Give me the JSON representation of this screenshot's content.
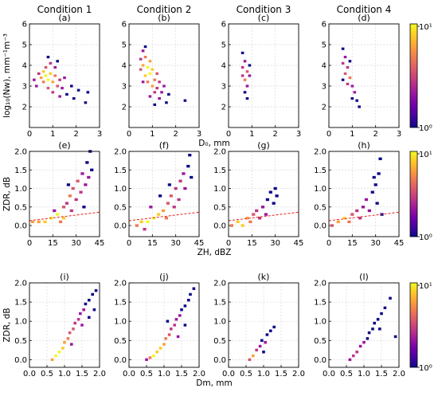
{
  "colors": {
    "colormap": [
      "#0d0887",
      "#46039f",
      "#7201a8",
      "#9c179e",
      "#bd3786",
      "#d8576b",
      "#ed7953",
      "#fb9f3a",
      "#fdca26",
      "#f0f921"
    ],
    "ref_line": "#e8201c",
    "grid": "#d9d9d9"
  },
  "columns": [
    "Condition 1",
    "Condition 2",
    "Condition 3",
    "Condition 4"
  ],
  "panel_labels": [
    "(a)",
    "(b)",
    "(c)",
    "(d)",
    "(e)",
    "(f)",
    "(g)",
    "(h)",
    "(i)",
    "(j)",
    "(k)",
    "(l)"
  ],
  "rows": [
    {
      "ylabel": "log₁₀(Nw), mm⁻¹m⁻³",
      "xlabel": "D₀, mm",
      "xlim": [
        0,
        3
      ],
      "ylim": [
        1,
        6
      ],
      "xticks": [
        "0",
        "1",
        "2",
        "3"
      ],
      "yticks": [
        "2",
        "3",
        "4",
        "5",
        "6"
      ],
      "colorbar": {
        "scale": "log",
        "ticks": [
          "10⁰",
          "10¹"
        ]
      }
    },
    {
      "ylabel": "ZDR, dB",
      "xlabel": "ZH, dBZ",
      "xlim": [
        0,
        45
      ],
      "ylim": [
        -0.3,
        2.0
      ],
      "xticks": [
        "0",
        "15",
        "30",
        "45"
      ],
      "yticks": [
        "0.0",
        "0.5",
        "1.0",
        "1.5",
        "2.0"
      ],
      "colorbar": {
        "scale": "log",
        "ticks": [
          "10⁰",
          "10¹"
        ]
      }
    },
    {
      "ylabel": "ZDR, dB",
      "xlabel": "Dm, mm",
      "xlim": [
        0,
        2
      ],
      "ylim": [
        -0.2,
        2.0
      ],
      "xticks": [
        "0.0",
        "0.5",
        "1.0",
        "1.5",
        "2.0"
      ],
      "yticks": [
        "0.0",
        "0.5",
        "1.0",
        "1.5",
        "2.0"
      ],
      "colorbar": {
        "scale": "log",
        "ticks": [
          "10⁰",
          "10¹"
        ]
      }
    }
  ],
  "chart_data": [
    {
      "panel": "(a)",
      "type": "heatmap",
      "x_field": "D0 (mm)",
      "y_field": "log10(Nw)",
      "count_scale": "log",
      "count_range": [
        1,
        10
      ],
      "cells": [
        [
          0.2,
          3.3,
          2
        ],
        [
          0.3,
          3.0,
          2
        ],
        [
          0.4,
          3.6,
          3
        ],
        [
          0.5,
          3.4,
          6
        ],
        [
          0.6,
          3.7,
          8
        ],
        [
          0.6,
          3.2,
          5
        ],
        [
          0.7,
          3.5,
          10
        ],
        [
          0.7,
          3.9,
          4
        ],
        [
          0.8,
          3.3,
          9
        ],
        [
          0.8,
          2.9,
          4
        ],
        [
          0.9,
          3.6,
          7
        ],
        [
          0.9,
          4.1,
          3
        ],
        [
          1.0,
          3.2,
          6
        ],
        [
          1.0,
          2.7,
          3
        ],
        [
          1.1,
          3.5,
          5
        ],
        [
          1.1,
          3.9,
          2
        ],
        [
          1.2,
          3.0,
          4
        ],
        [
          1.3,
          3.3,
          3
        ],
        [
          1.3,
          2.5,
          2
        ],
        [
          1.4,
          2.9,
          2
        ],
        [
          1.5,
          3.4,
          2
        ],
        [
          1.6,
          2.6,
          1
        ],
        [
          1.8,
          3.0,
          1
        ],
        [
          1.9,
          2.4,
          1
        ],
        [
          2.1,
          2.8,
          1
        ],
        [
          2.4,
          2.2,
          1
        ],
        [
          2.5,
          2.7,
          1
        ],
        [
          0.8,
          4.4,
          1
        ],
        [
          1.2,
          4.2,
          1
        ]
      ]
    },
    {
      "panel": "(b)",
      "type": "heatmap",
      "x_field": "D0 (mm)",
      "y_field": "log10(Nw)",
      "count_scale": "log",
      "count_range": [
        1,
        10
      ],
      "cells": [
        [
          0.5,
          4.3,
          3
        ],
        [
          0.5,
          3.8,
          4
        ],
        [
          0.6,
          4.7,
          2
        ],
        [
          0.6,
          4.0,
          6
        ],
        [
          0.7,
          3.5,
          8
        ],
        [
          0.7,
          4.4,
          5
        ],
        [
          0.8,
          3.9,
          9
        ],
        [
          0.8,
          3.2,
          5
        ],
        [
          0.9,
          4.2,
          6
        ],
        [
          0.9,
          3.6,
          10
        ],
        [
          1.0,
          3.0,
          6
        ],
        [
          1.0,
          3.8,
          7
        ],
        [
          1.1,
          3.3,
          5
        ],
        [
          1.1,
          2.7,
          3
        ],
        [
          1.2,
          3.6,
          4
        ],
        [
          1.2,
          2.9,
          3
        ],
        [
          1.3,
          3.2,
          3
        ],
        [
          1.3,
          2.4,
          2
        ],
        [
          1.4,
          2.7,
          2
        ],
        [
          1.5,
          3.0,
          2
        ],
        [
          1.6,
          2.2,
          1
        ],
        [
          1.7,
          2.6,
          1
        ],
        [
          0.6,
          3.2,
          2
        ],
        [
          0.9,
          2.5,
          2
        ],
        [
          1.1,
          2.1,
          1
        ],
        [
          2.4,
          2.3,
          1
        ],
        [
          0.7,
          4.9,
          1
        ]
      ]
    },
    {
      "panel": "(c)",
      "type": "heatmap",
      "x_field": "D0 (mm)",
      "y_field": "log10(Nw)",
      "count_scale": "log",
      "count_range": [
        1,
        10
      ],
      "cells": [
        [
          0.6,
          4.6,
          1
        ],
        [
          0.7,
          4.2,
          2
        ],
        [
          0.6,
          3.9,
          3
        ],
        [
          0.8,
          3.7,
          4
        ],
        [
          0.6,
          3.5,
          3
        ],
        [
          0.7,
          3.3,
          5
        ],
        [
          0.9,
          3.5,
          2
        ],
        [
          0.8,
          3.0,
          2
        ],
        [
          0.7,
          2.7,
          1
        ],
        [
          0.9,
          4.0,
          1
        ],
        [
          0.8,
          2.4,
          1
        ]
      ]
    },
    {
      "panel": "(d)",
      "type": "heatmap",
      "x_field": "D0 (mm)",
      "y_field": "log10(Nw)",
      "count_scale": "log",
      "count_range": [
        1,
        10
      ],
      "cells": [
        [
          0.6,
          4.8,
          1
        ],
        [
          0.7,
          4.4,
          2
        ],
        [
          0.6,
          4.1,
          3
        ],
        [
          0.8,
          3.9,
          3
        ],
        [
          0.7,
          3.6,
          4
        ],
        [
          0.9,
          3.4,
          5
        ],
        [
          0.8,
          3.1,
          3
        ],
        [
          1.0,
          3.0,
          2
        ],
        [
          1.1,
          2.7,
          2
        ],
        [
          1.0,
          2.4,
          1
        ],
        [
          1.2,
          2.3,
          1
        ],
        [
          1.3,
          2.0,
          1
        ],
        [
          0.9,
          4.2,
          1
        ],
        [
          0.6,
          3.3,
          1
        ]
      ]
    },
    {
      "panel": "(e)",
      "type": "heatmap",
      "x_field": "ZH (dBZ)",
      "y_field": "ZDR (dB)",
      "count_scale": "log",
      "count_range": [
        1,
        10
      ],
      "cells": [
        [
          2,
          0.1,
          6
        ],
        [
          6,
          0.1,
          6
        ],
        [
          10,
          0.1,
          7
        ],
        [
          14,
          0.2,
          9
        ],
        [
          18,
          0.3,
          10
        ],
        [
          20,
          0.1,
          5
        ],
        [
          22,
          0.2,
          8
        ],
        [
          22,
          0.5,
          4
        ],
        [
          24,
          0.6,
          3
        ],
        [
          26,
          0.8,
          5
        ],
        [
          27,
          0.4,
          3
        ],
        [
          28,
          1.0,
          4
        ],
        [
          30,
          0.7,
          3
        ],
        [
          31,
          1.2,
          4
        ],
        [
          33,
          0.9,
          3
        ],
        [
          34,
          1.4,
          2
        ],
        [
          36,
          1.1,
          2
        ],
        [
          37,
          1.7,
          1
        ],
        [
          38,
          1.3,
          2
        ],
        [
          39,
          2.0,
          1
        ],
        [
          40,
          1.5,
          1
        ],
        [
          35,
          0.5,
          1
        ],
        [
          25,
          1.1,
          1
        ],
        [
          16,
          0.4,
          2
        ]
      ],
      "reference_line": {
        "x": [
          0,
          45
        ],
        "y": [
          0.13,
          0.36
        ]
      }
    },
    {
      "panel": "(f)",
      "type": "heatmap",
      "x_field": "ZH (dBZ)",
      "y_field": "ZDR (dB)",
      "count_scale": "log",
      "count_range": [
        1,
        10
      ],
      "cells": [
        [
          5,
          0.0,
          5
        ],
        [
          8,
          0.1,
          7
        ],
        [
          12,
          0.1,
          9
        ],
        [
          16,
          0.2,
          10
        ],
        [
          19,
          0.3,
          8
        ],
        [
          22,
          0.4,
          6
        ],
        [
          24,
          0.2,
          5
        ],
        [
          25,
          0.6,
          4
        ],
        [
          27,
          0.8,
          4
        ],
        [
          29,
          0.5,
          3
        ],
        [
          30,
          1.0,
          3
        ],
        [
          32,
          0.7,
          3
        ],
        [
          33,
          1.2,
          3
        ],
        [
          35,
          1.4,
          2
        ],
        [
          36,
          1.0,
          2
        ],
        [
          38,
          1.6,
          1
        ],
        [
          39,
          1.9,
          1
        ],
        [
          40,
          1.3,
          1
        ],
        [
          20,
          0.8,
          1
        ],
        [
          26,
          1.1,
          1
        ],
        [
          14,
          0.5,
          2
        ],
        [
          10,
          -0.1,
          3
        ]
      ],
      "reference_line": {
        "x": [
          0,
          45
        ],
        "y": [
          0.13,
          0.36
        ]
      }
    },
    {
      "panel": "(g)",
      "type": "heatmap",
      "x_field": "ZH (dBZ)",
      "y_field": "ZDR (dB)",
      "count_scale": "log",
      "count_range": [
        1,
        10
      ],
      "cells": [
        [
          2,
          0.0,
          5
        ],
        [
          6,
          0.1,
          7
        ],
        [
          9,
          0.0,
          8
        ],
        [
          12,
          0.2,
          6
        ],
        [
          14,
          0.1,
          5
        ],
        [
          16,
          0.3,
          4
        ],
        [
          18,
          0.4,
          3
        ],
        [
          20,
          0.2,
          3
        ],
        [
          22,
          0.5,
          2
        ],
        [
          24,
          0.3,
          2
        ],
        [
          25,
          0.7,
          1
        ],
        [
          27,
          0.9,
          1
        ],
        [
          29,
          0.6,
          1
        ],
        [
          30,
          1.0,
          1
        ],
        [
          31,
          0.8,
          1
        ]
      ],
      "reference_line": {
        "x": [
          0,
          45
        ],
        "y": [
          0.13,
          0.36
        ]
      }
    },
    {
      "panel": "(h)",
      "type": "heatmap",
      "x_field": "ZH (dBZ)",
      "y_field": "ZDR (dB)",
      "count_scale": "log",
      "count_range": [
        1,
        10
      ],
      "cells": [
        [
          2,
          0.0,
          4
        ],
        [
          6,
          0.1,
          6
        ],
        [
          10,
          0.2,
          7
        ],
        [
          13,
          0.1,
          5
        ],
        [
          15,
          0.3,
          4
        ],
        [
          18,
          0.4,
          3
        ],
        [
          20,
          0.2,
          3
        ],
        [
          22,
          0.5,
          2
        ],
        [
          24,
          0.7,
          2
        ],
        [
          26,
          0.4,
          2
        ],
        [
          28,
          0.9,
          1
        ],
        [
          30,
          1.1,
          1
        ],
        [
          31,
          0.6,
          1
        ],
        [
          32,
          1.4,
          1
        ],
        [
          33,
          1.8,
          1
        ],
        [
          29,
          1.3,
          1
        ],
        [
          34,
          0.3,
          1
        ]
      ],
      "reference_line": {
        "x": [
          0,
          45
        ],
        "y": [
          0.13,
          0.36
        ]
      }
    },
    {
      "panel": "(i)",
      "type": "heatmap",
      "x_field": "Dm (mm)",
      "y_field": "ZDR (dB)",
      "count_scale": "log",
      "count_range": [
        1,
        10
      ],
      "cells": [
        [
          0.65,
          0.0,
          6
        ],
        [
          0.75,
          0.1,
          10
        ],
        [
          0.85,
          0.2,
          9
        ],
        [
          0.95,
          0.3,
          8
        ],
        [
          1.0,
          0.45,
          6
        ],
        [
          1.1,
          0.55,
          5
        ],
        [
          1.15,
          0.7,
          4
        ],
        [
          1.25,
          0.8,
          4
        ],
        [
          1.3,
          0.95,
          3
        ],
        [
          1.4,
          1.05,
          3
        ],
        [
          1.45,
          1.2,
          2
        ],
        [
          1.55,
          1.3,
          2
        ],
        [
          1.6,
          1.45,
          1
        ],
        [
          1.7,
          1.55,
          1
        ],
        [
          1.8,
          1.7,
          1
        ],
        [
          1.9,
          1.8,
          1
        ],
        [
          1.5,
          0.9,
          2
        ],
        [
          1.7,
          1.1,
          1
        ],
        [
          1.2,
          0.4,
          2
        ],
        [
          1.85,
          1.3,
          1
        ]
      ]
    },
    {
      "panel": "(j)",
      "type": "heatmap",
      "x_field": "Dm (mm)",
      "y_field": "ZDR (dB)",
      "count_scale": "log",
      "count_range": [
        1,
        10
      ],
      "cells": [
        [
          0.5,
          0.0,
          2
        ],
        [
          0.6,
          0.05,
          5
        ],
        [
          0.7,
          0.1,
          10
        ],
        [
          0.8,
          0.2,
          8
        ],
        [
          0.9,
          0.3,
          7
        ],
        [
          1.0,
          0.4,
          6
        ],
        [
          1.05,
          0.55,
          5
        ],
        [
          1.15,
          0.65,
          4
        ],
        [
          1.2,
          0.8,
          3
        ],
        [
          1.3,
          0.9,
          3
        ],
        [
          1.35,
          1.05,
          2
        ],
        [
          1.45,
          1.15,
          2
        ],
        [
          1.5,
          1.3,
          1
        ],
        [
          1.6,
          1.4,
          1
        ],
        [
          1.7,
          1.55,
          1
        ],
        [
          1.75,
          1.7,
          1
        ],
        [
          1.85,
          1.85,
          1
        ],
        [
          1.1,
          1.0,
          1
        ],
        [
          1.4,
          0.6,
          2
        ],
        [
          1.6,
          0.9,
          1
        ]
      ]
    },
    {
      "panel": "(k)",
      "type": "heatmap",
      "x_field": "Dm (mm)",
      "y_field": "ZDR (dB)",
      "count_scale": "log",
      "count_range": [
        1,
        10
      ],
      "cells": [
        [
          0.6,
          0.0,
          4
        ],
        [
          0.7,
          0.1,
          6
        ],
        [
          0.8,
          0.25,
          3
        ],
        [
          0.9,
          0.35,
          2
        ],
        [
          0.95,
          0.5,
          1
        ],
        [
          1.05,
          0.45,
          2
        ],
        [
          1.1,
          0.65,
          1
        ],
        [
          1.2,
          0.75,
          1
        ],
        [
          1.3,
          0.85,
          1
        ],
        [
          1.0,
          0.2,
          1
        ]
      ]
    },
    {
      "panel": "(l)",
      "type": "heatmap",
      "x_field": "Dm (mm)",
      "y_field": "ZDR (dB)",
      "count_scale": "log",
      "count_range": [
        1,
        10
      ],
      "cells": [
        [
          0.6,
          0.0,
          2
        ],
        [
          0.7,
          0.1,
          3
        ],
        [
          0.8,
          0.2,
          3
        ],
        [
          0.9,
          0.35,
          2
        ],
        [
          1.0,
          0.45,
          2
        ],
        [
          1.1,
          0.55,
          1
        ],
        [
          1.15,
          0.7,
          1
        ],
        [
          1.25,
          0.8,
          1
        ],
        [
          1.3,
          0.95,
          1
        ],
        [
          1.4,
          1.05,
          1
        ],
        [
          1.5,
          1.2,
          1
        ],
        [
          1.6,
          1.35,
          1
        ],
        [
          1.75,
          1.6,
          1
        ],
        [
          1.9,
          0.6,
          1
        ],
        [
          1.45,
          0.8,
          1
        ]
      ]
    }
  ]
}
